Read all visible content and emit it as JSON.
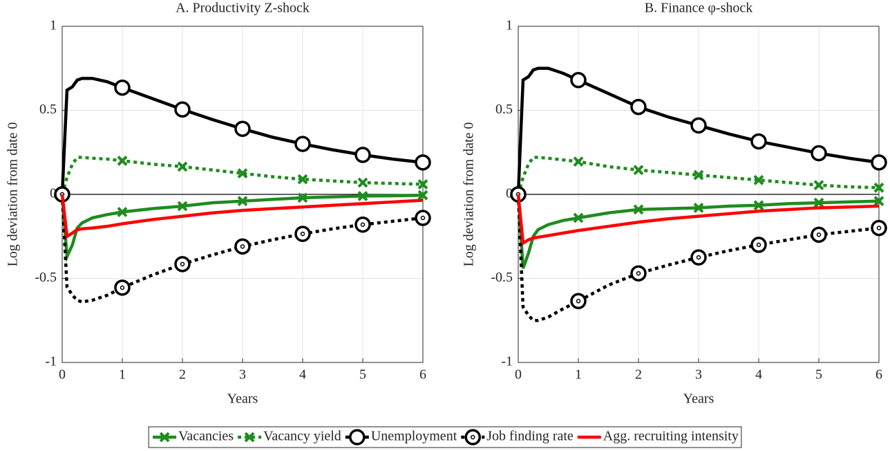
{
  "chart_data": [
    {
      "type": "line",
      "title": "A. Productivity Z-shock",
      "ylabel": "Log deviation from date 0",
      "xlabel": "Years",
      "x": [
        0,
        0.08,
        0.17,
        0.25,
        0.33,
        0.5,
        0.75,
        1,
        1.5,
        2,
        2.5,
        3,
        3.5,
        4,
        4.5,
        5,
        5.5,
        6
      ],
      "xlim": [
        0,
        6
      ],
      "ylim": [
        -1,
        1
      ],
      "xticks": [
        0,
        1,
        2,
        3,
        4,
        5,
        6
      ],
      "yticks": [
        -1,
        -0.5,
        0,
        0.5,
        1
      ],
      "grid": true,
      "legend": "bottom",
      "series": [
        {
          "name": "Vacancies",
          "color": "#1e8c1e",
          "dash": false,
          "marker": "x",
          "values": [
            0,
            -0.37,
            -0.3,
            -0.2,
            -0.17,
            -0.14,
            -0.12,
            -0.105,
            -0.085,
            -0.07,
            -0.05,
            -0.04,
            -0.03,
            -0.02,
            -0.015,
            -0.01,
            -0.008,
            -0.005
          ]
        },
        {
          "name": "Vacancy yield",
          "color": "#1e8c1e",
          "dash": true,
          "marker": "x",
          "values": [
            0,
            0.1,
            0.18,
            0.22,
            0.22,
            0.215,
            0.21,
            0.2,
            0.18,
            0.165,
            0.145,
            0.125,
            0.105,
            0.09,
            0.08,
            0.07,
            0.065,
            0.06
          ]
        },
        {
          "name": "Unemployment",
          "color": "#000000",
          "dash": false,
          "marker": "o",
          "values": [
            0,
            0.62,
            0.64,
            0.68,
            0.69,
            0.69,
            0.67,
            0.635,
            0.57,
            0.505,
            0.445,
            0.39,
            0.34,
            0.3,
            0.265,
            0.235,
            0.21,
            0.19
          ]
        },
        {
          "name": "Job finding rate",
          "color": "#000000",
          "dash": true,
          "marker": "dot-o",
          "values": [
            0,
            -0.55,
            -0.6,
            -0.63,
            -0.64,
            -0.63,
            -0.6,
            -0.555,
            -0.48,
            -0.415,
            -0.36,
            -0.31,
            -0.27,
            -0.235,
            -0.205,
            -0.18,
            -0.16,
            -0.14
          ]
        },
        {
          "name": "Agg. recruiting intensity",
          "color": "#ff0000",
          "dash": false,
          "marker": "none",
          "values": [
            0,
            -0.25,
            -0.23,
            -0.21,
            -0.205,
            -0.2,
            -0.19,
            -0.175,
            -0.15,
            -0.13,
            -0.11,
            -0.095,
            -0.085,
            -0.075,
            -0.065,
            -0.055,
            -0.045,
            -0.035
          ]
        }
      ]
    },
    {
      "type": "line",
      "title": "B. Finance φ-shock",
      "ylabel": "Log deviation from date 0",
      "xlabel": "Years",
      "x": [
        0,
        0.08,
        0.17,
        0.25,
        0.33,
        0.5,
        0.75,
        1,
        1.5,
        2,
        2.5,
        3,
        3.5,
        4,
        4.5,
        5,
        5.5,
        6
      ],
      "xlim": [
        0,
        6
      ],
      "ylim": [
        -1,
        1
      ],
      "xticks": [
        0,
        1,
        2,
        3,
        4,
        5,
        6
      ],
      "yticks": [
        -1,
        -0.5,
        0,
        0.5,
        1
      ],
      "grid": true,
      "series": [
        {
          "color": "#1e8c1e",
          "dash": false,
          "marker": "x",
          "values": [
            0,
            -0.44,
            -0.35,
            -0.25,
            -0.21,
            -0.18,
            -0.155,
            -0.14,
            -0.11,
            -0.09,
            -0.085,
            -0.08,
            -0.07,
            -0.065,
            -0.055,
            -0.05,
            -0.045,
            -0.04
          ]
        },
        {
          "color": "#1e8c1e",
          "dash": true,
          "marker": "x",
          "values": [
            0,
            0.1,
            0.18,
            0.22,
            0.22,
            0.215,
            0.205,
            0.195,
            0.165,
            0.145,
            0.13,
            0.115,
            0.1,
            0.085,
            0.07,
            0.055,
            0.045,
            0.04
          ]
        },
        {
          "color": "#000000",
          "dash": false,
          "marker": "o",
          "values": [
            0,
            0.68,
            0.7,
            0.74,
            0.75,
            0.75,
            0.72,
            0.68,
            0.6,
            0.52,
            0.46,
            0.41,
            0.36,
            0.315,
            0.28,
            0.245,
            0.215,
            0.19
          ]
        },
        {
          "color": "#000000",
          "dash": true,
          "marker": "dot-o",
          "values": [
            0,
            -0.67,
            -0.72,
            -0.75,
            -0.75,
            -0.73,
            -0.68,
            -0.635,
            -0.54,
            -0.47,
            -0.42,
            -0.375,
            -0.335,
            -0.3,
            -0.27,
            -0.24,
            -0.22,
            -0.2
          ]
        },
        {
          "color": "#ff0000",
          "dash": false,
          "marker": "none",
          "values": [
            0,
            -0.29,
            -0.27,
            -0.26,
            -0.255,
            -0.245,
            -0.23,
            -0.215,
            -0.19,
            -0.165,
            -0.145,
            -0.13,
            -0.115,
            -0.1,
            -0.09,
            -0.08,
            -0.075,
            -0.07
          ]
        }
      ]
    }
  ]
}
